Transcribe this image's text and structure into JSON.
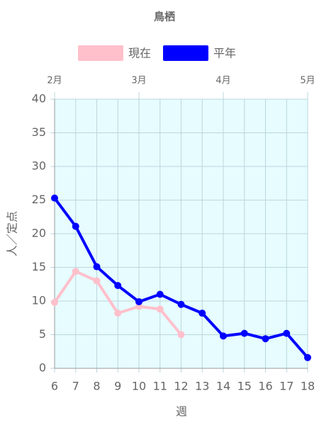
{
  "chart_data": {
    "type": "line",
    "title": "鳥栖",
    "x": [
      6,
      7,
      8,
      9,
      10,
      11,
      12,
      13,
      14,
      15,
      16,
      17,
      18
    ],
    "series": [
      {
        "name": "現在",
        "color": "#ffc0cb",
        "values": [
          9.8,
          14.4,
          13.0,
          8.2,
          9.2,
          8.8,
          5.0,
          null,
          null,
          null,
          null,
          null,
          null
        ]
      },
      {
        "name": "平年",
        "color": "#0000ff",
        "values": [
          25.3,
          21.1,
          15.1,
          12.3,
          9.9,
          11.0,
          9.5,
          8.2,
          4.8,
          5.2,
          4.4,
          5.2,
          1.6
        ]
      }
    ],
    "xlabel": "週",
    "ylabel": "人／定点",
    "xlim": [
      6,
      18
    ],
    "xticks": [
      6,
      7,
      8,
      9,
      10,
      11,
      12,
      13,
      14,
      15,
      16,
      17,
      18
    ],
    "x2ticks": [
      {
        "value": 6,
        "label": "2月"
      },
      {
        "value": 10,
        "label": "3月"
      },
      {
        "value": 14,
        "label": "4月"
      },
      {
        "value": 18,
        "label": "5月"
      }
    ],
    "ylim": [
      0,
      40
    ],
    "yticks": [
      0,
      5,
      10,
      15,
      20,
      25,
      30,
      35,
      40
    ],
    "grid": true,
    "legend": "top",
    "background": "#e6fcff"
  }
}
